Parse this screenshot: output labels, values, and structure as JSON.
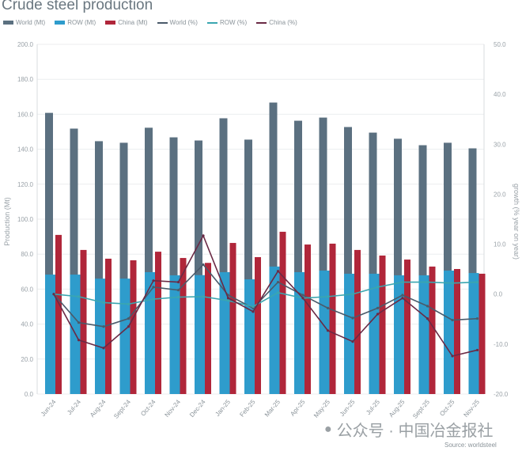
{
  "chart_data": {
    "type": "bar",
    "title": "Crude steel production",
    "ylabel": "Production (Mt)",
    "y2label": "growth (% year on year)",
    "ylim": [
      0,
      200
    ],
    "y2lim": [
      -20,
      50
    ],
    "yticks": [
      "0.0",
      "20.0",
      "40.0",
      "60.0",
      "80.0",
      "100.0",
      "120.0",
      "140.0",
      "160.0",
      "180.0",
      "200.0"
    ],
    "y2ticks": [
      "-20.0",
      "-10.0",
      "0.0",
      "10.0",
      "20.0",
      "30.0",
      "40.0",
      "50.0"
    ],
    "categories": [
      "Jun-24",
      "Jul-24",
      "Aug-24",
      "Sept-24",
      "Oct-24",
      "Nov-24",
      "Dec-24",
      "Jan-25",
      "Feb-25",
      "Mar-25",
      "Apr-25",
      "May-25",
      "Jun-25",
      "Jul-25",
      "Aug-25",
      "Sept-25",
      "Oct-25",
      "Nov-25"
    ],
    "series": [
      {
        "name": "World (Mt)",
        "type": "bar",
        "axis": "left",
        "color": "#5b7080",
        "values": [
          160.8,
          151.8,
          144.6,
          143.7,
          152.3,
          146.8,
          145.0,
          157.7,
          145.5,
          166.7,
          156.3,
          158.1,
          152.7,
          149.5,
          146.0,
          142.3,
          143.7,
          140.5
        ]
      },
      {
        "name": "ROW (Mt)",
        "type": "bar",
        "axis": "left",
        "color": "#2e9ccc",
        "values": [
          68.3,
          68.3,
          66.0,
          66.0,
          69.7,
          67.9,
          68.0,
          69.7,
          65.6,
          72.9,
          69.7,
          70.6,
          68.8,
          68.8,
          67.9,
          67.9,
          70.6,
          69.2
        ]
      },
      {
        "name": "China (Mt)",
        "type": "bar",
        "axis": "left",
        "color": "#b0263a",
        "values": [
          91.0,
          82.4,
          77.4,
          76.5,
          81.4,
          77.8,
          75.0,
          86.4,
          78.3,
          92.8,
          85.5,
          86.0,
          82.4,
          79.2,
          76.9,
          72.9,
          71.5,
          68.8
        ]
      },
      {
        "name": "World (%)",
        "type": "line",
        "axis": "right",
        "color": "#4a5a6a",
        "values": [
          0.0,
          -5.7,
          -6.5,
          -4.9,
          1.4,
          0.8,
          5.9,
          -0.2,
          -2.8,
          2.4,
          -0.2,
          -2.8,
          -4.8,
          -2.8,
          -0.2,
          -2.4,
          -5.2,
          -4.9
        ]
      },
      {
        "name": "ROW (%)",
        "type": "line",
        "axis": "right",
        "color": "#3aa6b0",
        "values": [
          0.0,
          -0.5,
          -1.7,
          -2.0,
          -1.0,
          -0.6,
          -0.5,
          -1.3,
          -2.5,
          0.3,
          -0.8,
          -0.5,
          0.0,
          1.4,
          2.4,
          2.4,
          2.2,
          2.4
        ]
      },
      {
        "name": "China (%)",
        "type": "line",
        "axis": "right",
        "color": "#6a2a45",
        "values": [
          0.0,
          -9.2,
          -10.8,
          -6.5,
          2.7,
          2.4,
          11.7,
          -0.8,
          -3.5,
          4.6,
          -0.8,
          -7.3,
          -9.5,
          -4.0,
          -0.8,
          -4.9,
          -12.4,
          -11.2
        ]
      }
    ],
    "grid": true,
    "legend": "top-left"
  },
  "watermark": "公众号 · 中国冶金报社",
  "source": "Source: worldsteel"
}
